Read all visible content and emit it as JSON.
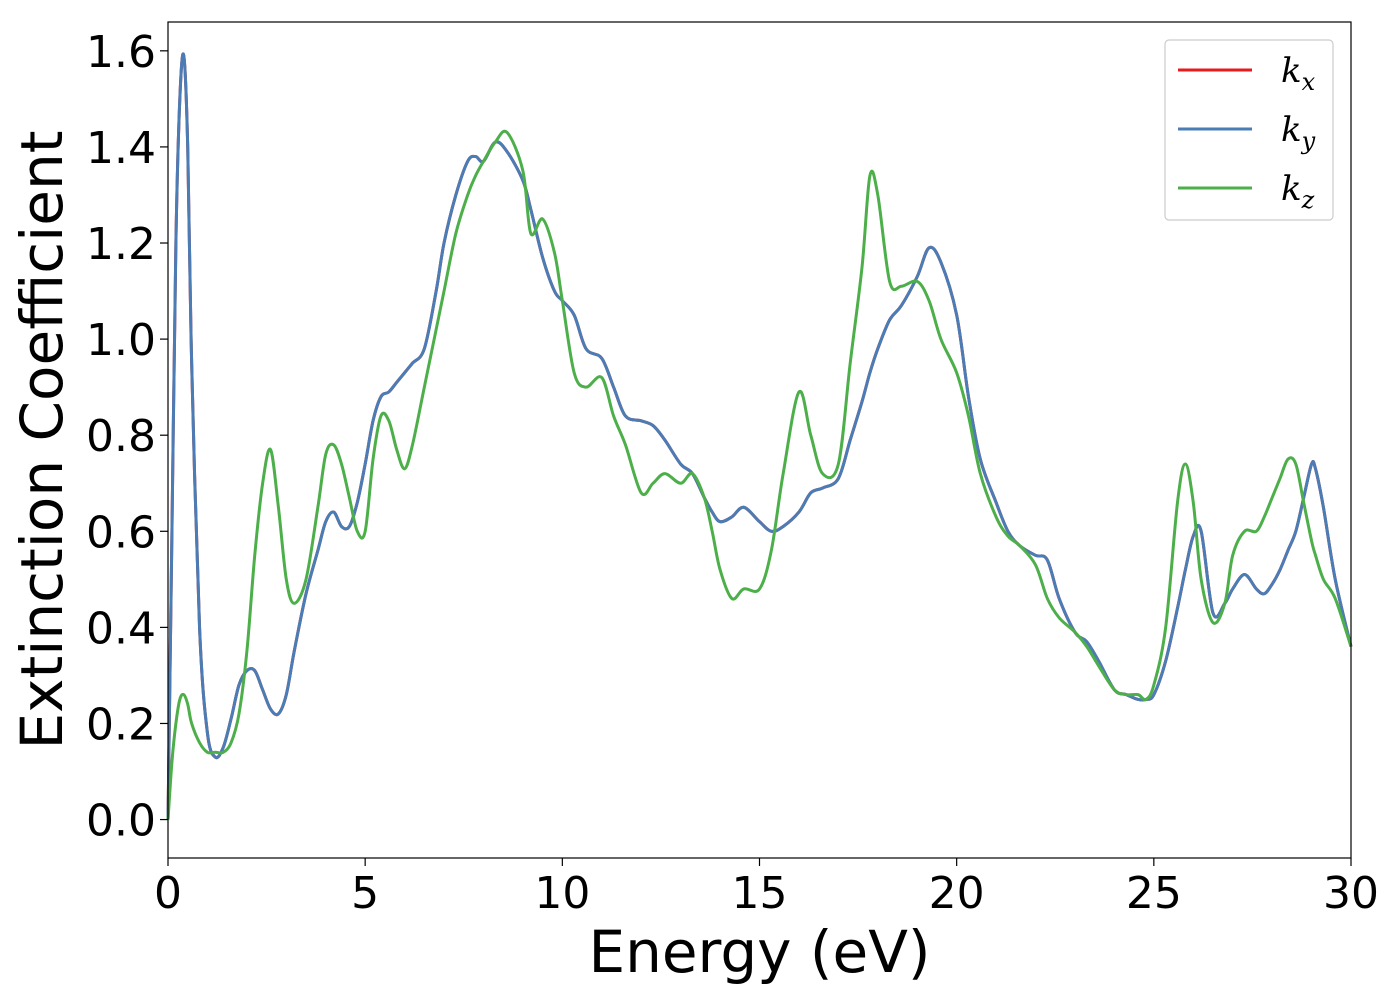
{
  "chart_data": {
    "type": "line",
    "xlabel": "Energy (eV)",
    "ylabel": "Extinction Coefficient",
    "xlim": [
      0,
      30
    ],
    "ylim": [
      -0.08,
      1.66
    ],
    "xticks": [
      0,
      5,
      10,
      15,
      20,
      25,
      30
    ],
    "xtick_labels": [
      "0",
      "5",
      "10",
      "15",
      "20",
      "25",
      "30"
    ],
    "yticks": [
      0.0,
      0.2,
      0.4,
      0.6,
      0.8,
      1.0,
      1.2,
      1.4,
      1.6
    ],
    "ytick_labels": [
      "0.0",
      "0.2",
      "0.4",
      "0.6",
      "0.8",
      "1.0",
      "1.2",
      "1.4",
      "1.6"
    ],
    "grid": false,
    "legend_position": "top-right",
    "x": [
      0,
      0.1,
      0.2,
      0.3,
      0.4,
      0.5,
      0.6,
      0.8,
      1.0,
      1.2,
      1.4,
      1.6,
      1.8,
      2.0,
      2.2,
      2.4,
      2.6,
      2.8,
      3.0,
      3.2,
      3.5,
      3.8,
      4.0,
      4.2,
      4.4,
      4.6,
      4.8,
      5.0,
      5.2,
      5.4,
      5.6,
      5.8,
      6.0,
      6.2,
      6.5,
      6.8,
      7.0,
      7.3,
      7.6,
      7.8,
      8.0,
      8.3,
      8.6,
      9.0,
      9.2,
      9.5,
      9.8,
      10.0,
      10.3,
      10.6,
      11.0,
      11.3,
      11.6,
      12.0,
      12.3,
      12.6,
      13.0,
      13.3,
      13.6,
      13.8,
      14.0,
      14.3,
      14.6,
      15.0,
      15.3,
      15.6,
      16.0,
      16.3,
      16.6,
      17.0,
      17.3,
      17.6,
      17.8,
      18.0,
      18.3,
      18.6,
      19.0,
      19.3,
      19.6,
      20.0,
      20.3,
      20.6,
      21.0,
      21.3,
      21.6,
      22.0,
      22.3,
      22.6,
      23.0,
      23.3,
      23.6,
      24.0,
      24.3,
      24.6,
      24.8,
      25.0,
      25.3,
      25.6,
      25.8,
      26.0,
      26.2,
      26.5,
      26.8,
      27.0,
      27.3,
      27.6,
      27.8,
      28.0,
      28.2,
      28.4,
      28.6,
      28.8,
      29.0,
      29.1,
      29.3,
      29.6,
      30.0
    ],
    "series": [
      {
        "name": "k_x",
        "color": "#e41a1c",
        "values": [
          0.0,
          0.6,
          1.2,
          1.5,
          1.59,
          1.4,
          0.95,
          0.4,
          0.18,
          0.13,
          0.15,
          0.21,
          0.28,
          0.31,
          0.31,
          0.27,
          0.23,
          0.22,
          0.26,
          0.35,
          0.47,
          0.56,
          0.62,
          0.64,
          0.61,
          0.61,
          0.66,
          0.74,
          0.83,
          0.88,
          0.89,
          0.91,
          0.93,
          0.95,
          0.98,
          1.1,
          1.2,
          1.3,
          1.37,
          1.38,
          1.37,
          1.41,
          1.39,
          1.33,
          1.27,
          1.17,
          1.1,
          1.08,
          1.05,
          0.98,
          0.96,
          0.9,
          0.84,
          0.83,
          0.82,
          0.79,
          0.74,
          0.72,
          0.67,
          0.64,
          0.62,
          0.63,
          0.65,
          0.62,
          0.6,
          0.61,
          0.64,
          0.68,
          0.69,
          0.71,
          0.79,
          0.87,
          0.93,
          0.98,
          1.04,
          1.07,
          1.13,
          1.19,
          1.16,
          1.05,
          0.88,
          0.75,
          0.66,
          0.6,
          0.57,
          0.55,
          0.54,
          0.46,
          0.39,
          0.37,
          0.33,
          0.27,
          0.26,
          0.25,
          0.25,
          0.26,
          0.33,
          0.44,
          0.52,
          0.59,
          0.6,
          0.43,
          0.45,
          0.48,
          0.51,
          0.48,
          0.47,
          0.49,
          0.52,
          0.56,
          0.6,
          0.67,
          0.74,
          0.73,
          0.65,
          0.5,
          0.36
        ]
      },
      {
        "name": "k_y",
        "color": "#4a7db5",
        "values": [
          0.0,
          0.6,
          1.2,
          1.5,
          1.59,
          1.4,
          0.95,
          0.4,
          0.18,
          0.13,
          0.15,
          0.21,
          0.28,
          0.31,
          0.31,
          0.27,
          0.23,
          0.22,
          0.26,
          0.35,
          0.47,
          0.56,
          0.62,
          0.64,
          0.61,
          0.61,
          0.66,
          0.74,
          0.83,
          0.88,
          0.89,
          0.91,
          0.93,
          0.95,
          0.98,
          1.1,
          1.2,
          1.3,
          1.37,
          1.38,
          1.37,
          1.41,
          1.39,
          1.33,
          1.27,
          1.17,
          1.1,
          1.08,
          1.05,
          0.98,
          0.96,
          0.9,
          0.84,
          0.83,
          0.82,
          0.79,
          0.74,
          0.72,
          0.67,
          0.64,
          0.62,
          0.63,
          0.65,
          0.62,
          0.6,
          0.61,
          0.64,
          0.68,
          0.69,
          0.71,
          0.79,
          0.87,
          0.93,
          0.98,
          1.04,
          1.07,
          1.13,
          1.19,
          1.16,
          1.05,
          0.88,
          0.75,
          0.66,
          0.6,
          0.57,
          0.55,
          0.54,
          0.46,
          0.39,
          0.37,
          0.33,
          0.27,
          0.26,
          0.25,
          0.25,
          0.26,
          0.33,
          0.44,
          0.52,
          0.59,
          0.6,
          0.43,
          0.45,
          0.48,
          0.51,
          0.48,
          0.47,
          0.49,
          0.52,
          0.56,
          0.6,
          0.67,
          0.74,
          0.73,
          0.65,
          0.5,
          0.36
        ]
      },
      {
        "name": "k_z",
        "color": "#4daf4a",
        "values": [
          0.0,
          0.12,
          0.2,
          0.25,
          0.26,
          0.24,
          0.2,
          0.16,
          0.14,
          0.14,
          0.14,
          0.16,
          0.22,
          0.35,
          0.55,
          0.7,
          0.77,
          0.65,
          0.5,
          0.45,
          0.5,
          0.65,
          0.76,
          0.78,
          0.74,
          0.67,
          0.6,
          0.6,
          0.75,
          0.84,
          0.83,
          0.77,
          0.73,
          0.78,
          0.9,
          1.02,
          1.1,
          1.22,
          1.3,
          1.34,
          1.37,
          1.41,
          1.43,
          1.35,
          1.22,
          1.25,
          1.18,
          1.08,
          0.93,
          0.9,
          0.92,
          0.84,
          0.78,
          0.68,
          0.7,
          0.72,
          0.7,
          0.72,
          0.67,
          0.6,
          0.52,
          0.46,
          0.48,
          0.48,
          0.56,
          0.72,
          0.89,
          0.8,
          0.72,
          0.74,
          0.95,
          1.15,
          1.34,
          1.3,
          1.12,
          1.11,
          1.12,
          1.08,
          1.0,
          0.93,
          0.84,
          0.72,
          0.63,
          0.59,
          0.57,
          0.53,
          0.46,
          0.42,
          0.39,
          0.36,
          0.32,
          0.27,
          0.26,
          0.26,
          0.25,
          0.28,
          0.4,
          0.66,
          0.74,
          0.66,
          0.5,
          0.41,
          0.45,
          0.55,
          0.6,
          0.6,
          0.63,
          0.67,
          0.71,
          0.75,
          0.74,
          0.66,
          0.58,
          0.55,
          0.5,
          0.46,
          0.36
        ]
      }
    ]
  },
  "legend": {
    "items": [
      {
        "base": "k",
        "sub": "x",
        "color": "#e41a1c"
      },
      {
        "base": "k",
        "sub": "y",
        "color": "#4a7db5"
      },
      {
        "base": "k",
        "sub": "z",
        "color": "#4daf4a"
      }
    ]
  }
}
